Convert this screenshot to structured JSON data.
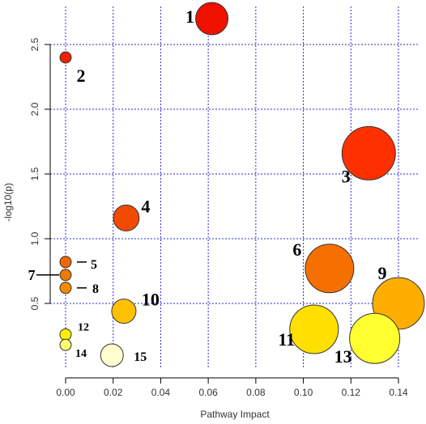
{
  "chart_data": {
    "type": "scatter",
    "title": "",
    "xlabel": "Pathway Impact",
    "ylabel": "-log10(p)",
    "xlim": [
      0.0,
      0.14
    ],
    "ylim": [
      0.0,
      2.75
    ],
    "xticks": [
      "0.00",
      "0.02",
      "0.04",
      "0.06",
      "0.08",
      "0.10",
      "0.12",
      "0.14"
    ],
    "yticks": [
      "0.5",
      "1.0",
      "1.5",
      "2.0",
      "2.5"
    ],
    "xtick_values": [
      0.0,
      0.02,
      0.04,
      0.06,
      0.08,
      0.1,
      0.12,
      0.14
    ],
    "ytick_values": [
      0.5,
      1.0,
      1.5,
      2.0,
      2.5
    ],
    "grid": true,
    "colors": {
      "grid": "#2b2bd6",
      "axis": "#000000"
    },
    "points": [
      {
        "label": "1",
        "x": 0.0615,
        "y": 2.7,
        "size": "medium",
        "color": "#ee1100"
      },
      {
        "label": "2",
        "x": 0.0,
        "y": 2.4,
        "size": "small",
        "color": "#ee2200"
      },
      {
        "label": "3",
        "x": 0.1275,
        "y": 1.66,
        "size": "large",
        "color": "#ff3000"
      },
      {
        "label": "4",
        "x": 0.0255,
        "y": 1.16,
        "size": "medium",
        "color": "#f24a00"
      },
      {
        "label": "5",
        "x": 0.0,
        "y": 0.82,
        "size": "small",
        "color": "#f06800"
      },
      {
        "label": "6",
        "x": 0.111,
        "y": 0.77,
        "size": "large",
        "color": "#f57000"
      },
      {
        "label": "7",
        "x": 0.0,
        "y": 0.72,
        "size": "small",
        "color": "#f07800"
      },
      {
        "label": "8",
        "x": 0.0,
        "y": 0.62,
        "size": "small",
        "color": "#f48a00"
      },
      {
        "label": "9",
        "x": 0.14,
        "y": 0.5,
        "size": "large",
        "color": "#ffae00"
      },
      {
        "label": "10",
        "x": 0.0245,
        "y": 0.44,
        "size": "medium",
        "color": "#ffc000"
      },
      {
        "label": "11",
        "x": 0.1045,
        "y": 0.3,
        "size": "large",
        "color": "#ffe000"
      },
      {
        "label": "12",
        "x": 0.0,
        "y": 0.26,
        "size": "small",
        "color": "#ffee00"
      },
      {
        "label": "13",
        "x": 0.13,
        "y": 0.23,
        "size": "large",
        "color": "#ffff30"
      },
      {
        "label": "14",
        "x": 0.0,
        "y": 0.18,
        "size": "small",
        "color": "#ffff70"
      },
      {
        "label": "15",
        "x": 0.0195,
        "y": 0.1,
        "size": "medium",
        "color": "#ffffd0"
      }
    ]
  }
}
